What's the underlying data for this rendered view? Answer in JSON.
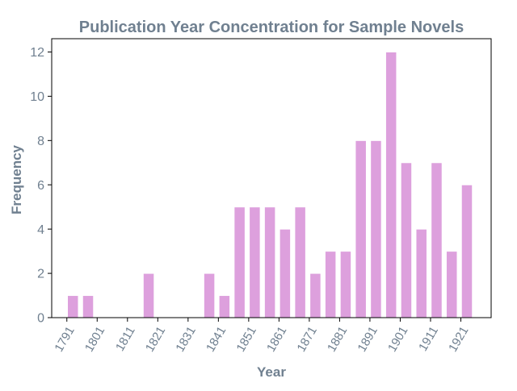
{
  "chart_data": {
    "type": "bar",
    "title": "Publication Year Concentration for Sample Novels",
    "xlabel": "Year",
    "ylabel": "Frequency",
    "bin_width_years": 5,
    "x_ticks": [
      1791,
      1801,
      1811,
      1821,
      1831,
      1841,
      1851,
      1861,
      1871,
      1881,
      1891,
      1901,
      1911,
      1921
    ],
    "x_tick_labels": [
      "1791",
      "1801",
      "1811",
      "1821",
      "1831",
      "1841",
      "1851",
      "1861",
      "1871",
      "1881",
      "1891",
      "1901",
      "1911",
      "1921"
    ],
    "y_ticks": [
      0,
      2,
      4,
      6,
      8,
      10,
      12
    ],
    "y_tick_labels": [
      "0",
      "2",
      "4",
      "6",
      "8",
      "10",
      "12"
    ],
    "xlim": [
      1786,
      1931
    ],
    "ylim": [
      0,
      12.6
    ],
    "bars": [
      {
        "x": 1793,
        "value": 1
      },
      {
        "x": 1798,
        "value": 1
      },
      {
        "x": 1818,
        "value": 2
      },
      {
        "x": 1838,
        "value": 2
      },
      {
        "x": 1843,
        "value": 1
      },
      {
        "x": 1848,
        "value": 5
      },
      {
        "x": 1853,
        "value": 5
      },
      {
        "x": 1858,
        "value": 5
      },
      {
        "x": 1863,
        "value": 4
      },
      {
        "x": 1868,
        "value": 5
      },
      {
        "x": 1873,
        "value": 2
      },
      {
        "x": 1878,
        "value": 3
      },
      {
        "x": 1883,
        "value": 3
      },
      {
        "x": 1888,
        "value": 8
      },
      {
        "x": 1893,
        "value": 8
      },
      {
        "x": 1898,
        "value": 12
      },
      {
        "x": 1903,
        "value": 7
      },
      {
        "x": 1908,
        "value": 4
      },
      {
        "x": 1913,
        "value": 7
      },
      {
        "x": 1918,
        "value": 3
      },
      {
        "x": 1923,
        "value": 6
      }
    ],
    "grid": false,
    "legend": "none",
    "colors": {
      "bar": "#dda0dd",
      "bar_edge": "#ffffff",
      "text": "#708090",
      "axis": "#000000"
    }
  }
}
